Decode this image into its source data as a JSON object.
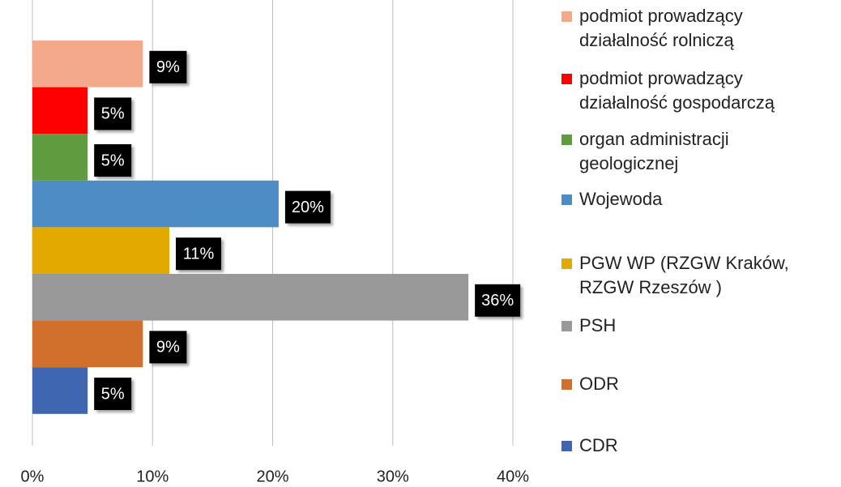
{
  "chart_data": {
    "type": "hbar",
    "categories": [
      "podmiot prowadzący działalność rolniczą",
      "podmiot prowadzący działalność gospodarczą",
      "organ administracji geologicznej",
      "Wojewoda",
      "PGW WP (RZGW Kraków, RZGW Rzeszów )",
      "PSH",
      "ODR",
      "CDR"
    ],
    "values": [
      9.2,
      4.6,
      4.6,
      20.5,
      11.4,
      36.3,
      9.2,
      4.6
    ],
    "value_labels": [
      "9%",
      "5%",
      "5%",
      "20%",
      "11%",
      "36%",
      "9%",
      "5%"
    ],
    "colors": [
      "#f4a98a",
      "#ff0000",
      "#5f9b3f",
      "#4e8cc6",
      "#e3a900",
      "#999999",
      "#d1702c",
      "#3f66b1"
    ],
    "xlim": [
      0,
      40
    ],
    "xticks": [
      {
        "value": 0,
        "label": "0%"
      },
      {
        "value": 10,
        "label": "10%"
      },
      {
        "value": 20,
        "label": "20%"
      },
      {
        "value": 30,
        "label": "30%"
      },
      {
        "value": 40,
        "label": "40%"
      }
    ],
    "grid": true,
    "legend": "right"
  }
}
